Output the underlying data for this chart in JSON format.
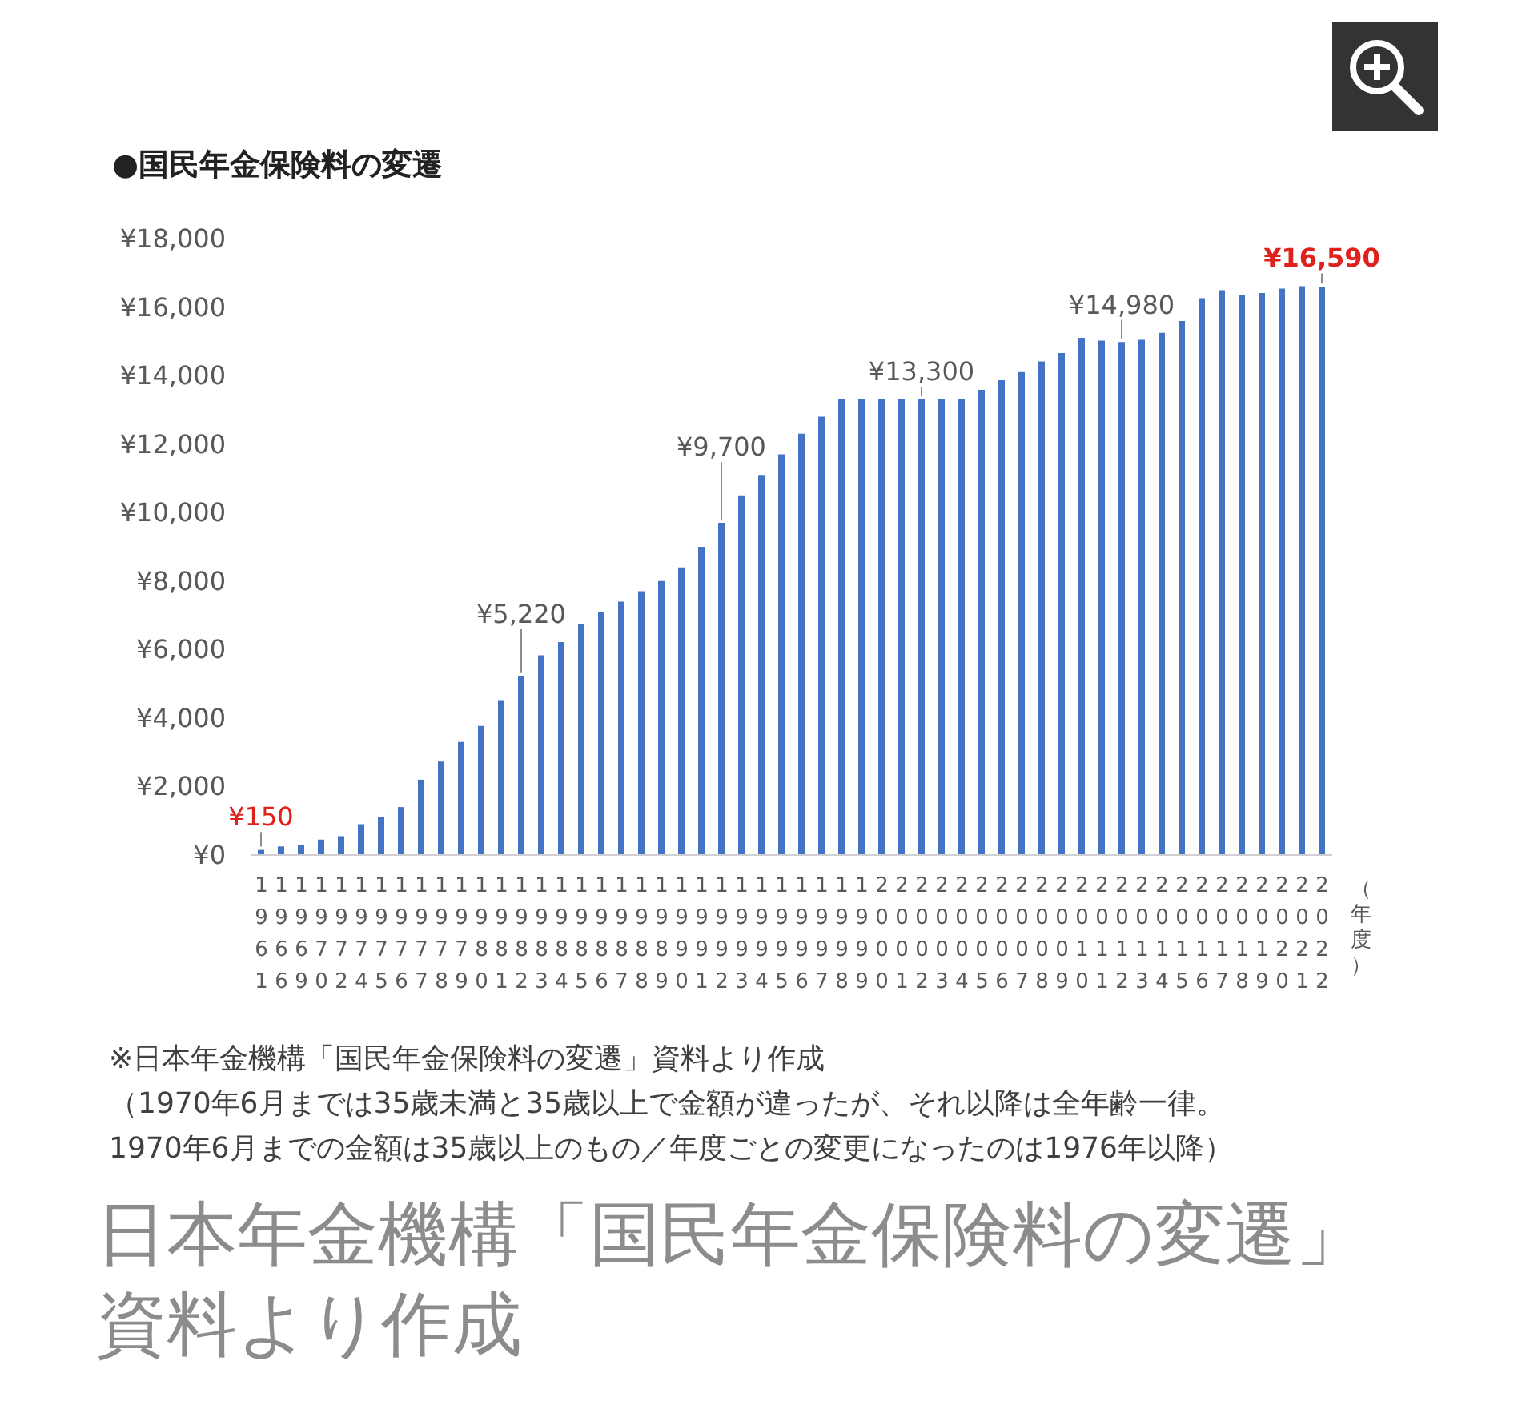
{
  "chart_data": {
    "type": "bar",
    "title": "●国民年金保険料の変遷",
    "xlabel": "（年度）",
    "categories": [
      "1961",
      "1966",
      "1969",
      "1970",
      "1972",
      "1974",
      "1975",
      "1976",
      "1977",
      "1978",
      "1979",
      "1980",
      "1981",
      "1982",
      "1983",
      "1984",
      "1985",
      "1986",
      "1987",
      "1988",
      "1989",
      "1990",
      "1991",
      "1992",
      "1993",
      "1994",
      "1995",
      "1996",
      "1997",
      "1998",
      "1999",
      "2000",
      "2001",
      "2002",
      "2003",
      "2004",
      "2005",
      "2006",
      "2007",
      "2008",
      "2009",
      "2010",
      "2011",
      "2012",
      "2013",
      "2014",
      "2015",
      "2016",
      "2017",
      "2018",
      "2019",
      "2020",
      "2021",
      "2022"
    ],
    "values": [
      150,
      250,
      300,
      450,
      550,
      900,
      1100,
      1400,
      2200,
      2730,
      3300,
      3770,
      4500,
      5220,
      5830,
      6220,
      6740,
      7100,
      7400,
      7700,
      8000,
      8400,
      9000,
      9700,
      10500,
      11100,
      11700,
      12300,
      12800,
      13300,
      13300,
      13300,
      13300,
      13300,
      13300,
      13300,
      13580,
      13860,
      14100,
      14410,
      14660,
      15100,
      15020,
      14980,
      15040,
      15250,
      15590,
      16260,
      16490,
      16340,
      16410,
      16540,
      16610,
      16590
    ],
    "value_labels": [
      "¥150",
      null,
      null,
      null,
      null,
      null,
      null,
      null,
      null,
      null,
      null,
      null,
      null,
      "¥5,220",
      null,
      null,
      null,
      null,
      null,
      null,
      null,
      null,
      null,
      "¥9,700",
      null,
      null,
      null,
      null,
      null,
      null,
      null,
      null,
      null,
      "¥13,300",
      null,
      null,
      null,
      null,
      null,
      null,
      null,
      null,
      null,
      "¥14,980",
      null,
      null,
      null,
      null,
      null,
      null,
      null,
      null,
      null,
      "¥16,590"
    ],
    "color": "#4472c4",
    "ylim": [
      0,
      18000
    ],
    "yticks": [
      {
        "value": 0,
        "label": "¥0"
      },
      {
        "value": 2000,
        "label": "¥2,000"
      },
      {
        "value": 4000,
        "label": "¥4,000"
      },
      {
        "value": 6000,
        "label": "¥6,000"
      },
      {
        "value": 8000,
        "label": "¥8,000"
      },
      {
        "value": 10000,
        "label": "¥10,000"
      },
      {
        "value": 12000,
        "label": "¥12,000"
      },
      {
        "value": 14000,
        "label": "¥14,000"
      },
      {
        "value": 16000,
        "label": "¥16,000"
      },
      {
        "value": 18000,
        "label": "¥18,000"
      }
    ],
    "annotations": [
      "※日本年金機構「国民年金保険料の変遷」資料より作成",
      "（1970年6月までは35歳未満と35歳以上で金額が違ったが、それ以降は全年齢一律。",
      "1970年6月までの金額は35歳以上のもの／年度ごとの変更になったのは1976年以降）",
      "日本年金機構「国民年金保険料の変遷」資料より作成"
    ]
  }
}
